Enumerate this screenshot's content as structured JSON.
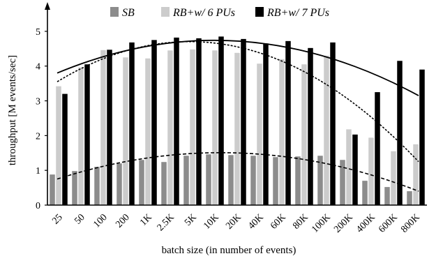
{
  "chart_data": {
    "type": "bar",
    "xlabel": "batch size (in number of events)",
    "ylabel": "throughput [M events/sec]",
    "ylim": [
      0,
      5.5
    ],
    "yticks": [
      0,
      1,
      2,
      3,
      4,
      5
    ],
    "grid": false,
    "legend_position": "top",
    "categories": [
      "25",
      "50",
      "100",
      "200",
      "1K",
      "2.5K",
      "5K",
      "10K",
      "20K",
      "40K",
      "60K",
      "80K",
      "100K",
      "200K",
      "400K",
      "600K",
      "800K"
    ],
    "series": [
      {
        "name": "SB",
        "color": "#8c8c8c",
        "values": [
          0.88,
          0.98,
          1.1,
          1.2,
          1.3,
          1.24,
          1.42,
          1.46,
          1.44,
          1.42,
          1.38,
          1.4,
          1.42,
          1.3,
          0.7,
          0.52,
          0.4
        ],
        "trend": [
          0.75,
          1.5,
          0.4
        ]
      },
      {
        "name": "RB+w/ 6 PUs",
        "color": "#cccccc",
        "values": [
          3.42,
          3.96,
          4.46,
          4.25,
          4.22,
          4.45,
          4.48,
          4.45,
          4.38,
          4.07,
          4.2,
          4.05,
          4.3,
          2.18,
          1.94,
          1.55,
          1.75
        ],
        "trend": [
          3.55,
          4.55,
          1.25
        ]
      },
      {
        "name": "RB+w/ 7 PUs",
        "color": "#000000",
        "values": [
          3.2,
          4.05,
          4.47,
          4.68,
          4.75,
          4.82,
          4.8,
          4.85,
          4.78,
          4.65,
          4.72,
          4.52,
          4.68,
          2.03,
          3.25,
          4.15,
          3.9
        ],
        "trend": [
          3.8,
          4.72,
          3.15
        ]
      }
    ]
  }
}
